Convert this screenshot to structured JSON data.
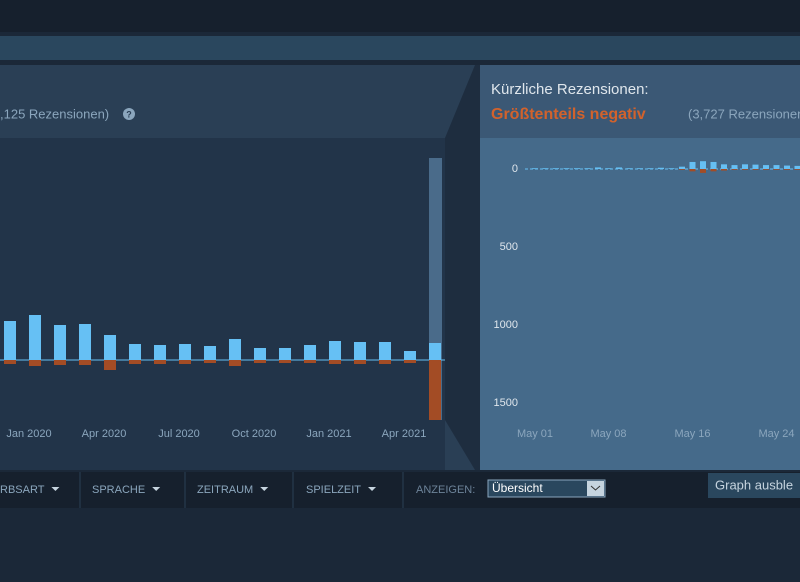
{
  "overall_header": {
    "count": ",125 Rezensionen)"
  },
  "recent_header": {
    "label": "Kürzliche Rezensionen:",
    "rating": "Größtenteils negativ",
    "count": "(3,727 Rezensionen"
  },
  "overall_chart": {
    "type": "bar",
    "categories": [
      null,
      "Jan 2020",
      null,
      null,
      "Apr 2020",
      null,
      null,
      "Jul 2020",
      null,
      null,
      "Oct 2020",
      null,
      null,
      "Jan 2021",
      null,
      null,
      "Apr 2021",
      null
    ],
    "ylim": [
      -60,
      220
    ],
    "series": [
      {
        "color": "#66c0f4",
        "values": [
          39,
          45,
          35,
          36,
          25,
          16,
          15,
          16,
          14,
          21,
          12,
          12,
          15,
          19,
          18,
          18,
          9,
          17
        ]
      },
      {
        "color": "#a34c25",
        "values": [
          -4,
          -6,
          -5,
          -5,
          -10,
          -4,
          -4,
          -4,
          -3,
          -6,
          -3,
          -3,
          -3,
          -4,
          -4,
          -4,
          -3,
          -60
        ]
      }
    ]
  },
  "recent_chart": {
    "type": "bar",
    "categories": [
      "May 01",
      null,
      null,
      null,
      null,
      null,
      null,
      "May 08",
      null,
      null,
      null,
      null,
      null,
      null,
      null,
      "May 16",
      null,
      null,
      null,
      null,
      null,
      null,
      null,
      "May 24",
      null,
      null
    ],
    "ylim": [
      0,
      1500
    ],
    "yticks": [
      0,
      500,
      1000,
      1500
    ],
    "series": [
      {
        "color": "#66c0f4",
        "values": [
          5,
          5,
          5,
          5,
          5,
          5,
          10,
          5,
          10,
          5,
          5,
          5,
          8,
          5,
          15,
          45,
          50,
          45,
          30,
          25,
          30,
          28,
          25,
          25,
          22,
          20
        ]
      },
      {
        "color": "#a34c25",
        "values": [
          0,
          0,
          0,
          0,
          0,
          0,
          0,
          0,
          0,
          0,
          0,
          0,
          0,
          0,
          5,
          15,
          25,
          15,
          10,
          5,
          5,
          5,
          5,
          5,
          5,
          5
        ]
      }
    ]
  },
  "filters": [
    "RBSART",
    "SPRACHE",
    "ZEITRAUM",
    "SPIELZEIT"
  ],
  "display_label": "ANZEIGEN:",
  "display_value": "Übersicht",
  "hide_button": "Graph ausble"
}
